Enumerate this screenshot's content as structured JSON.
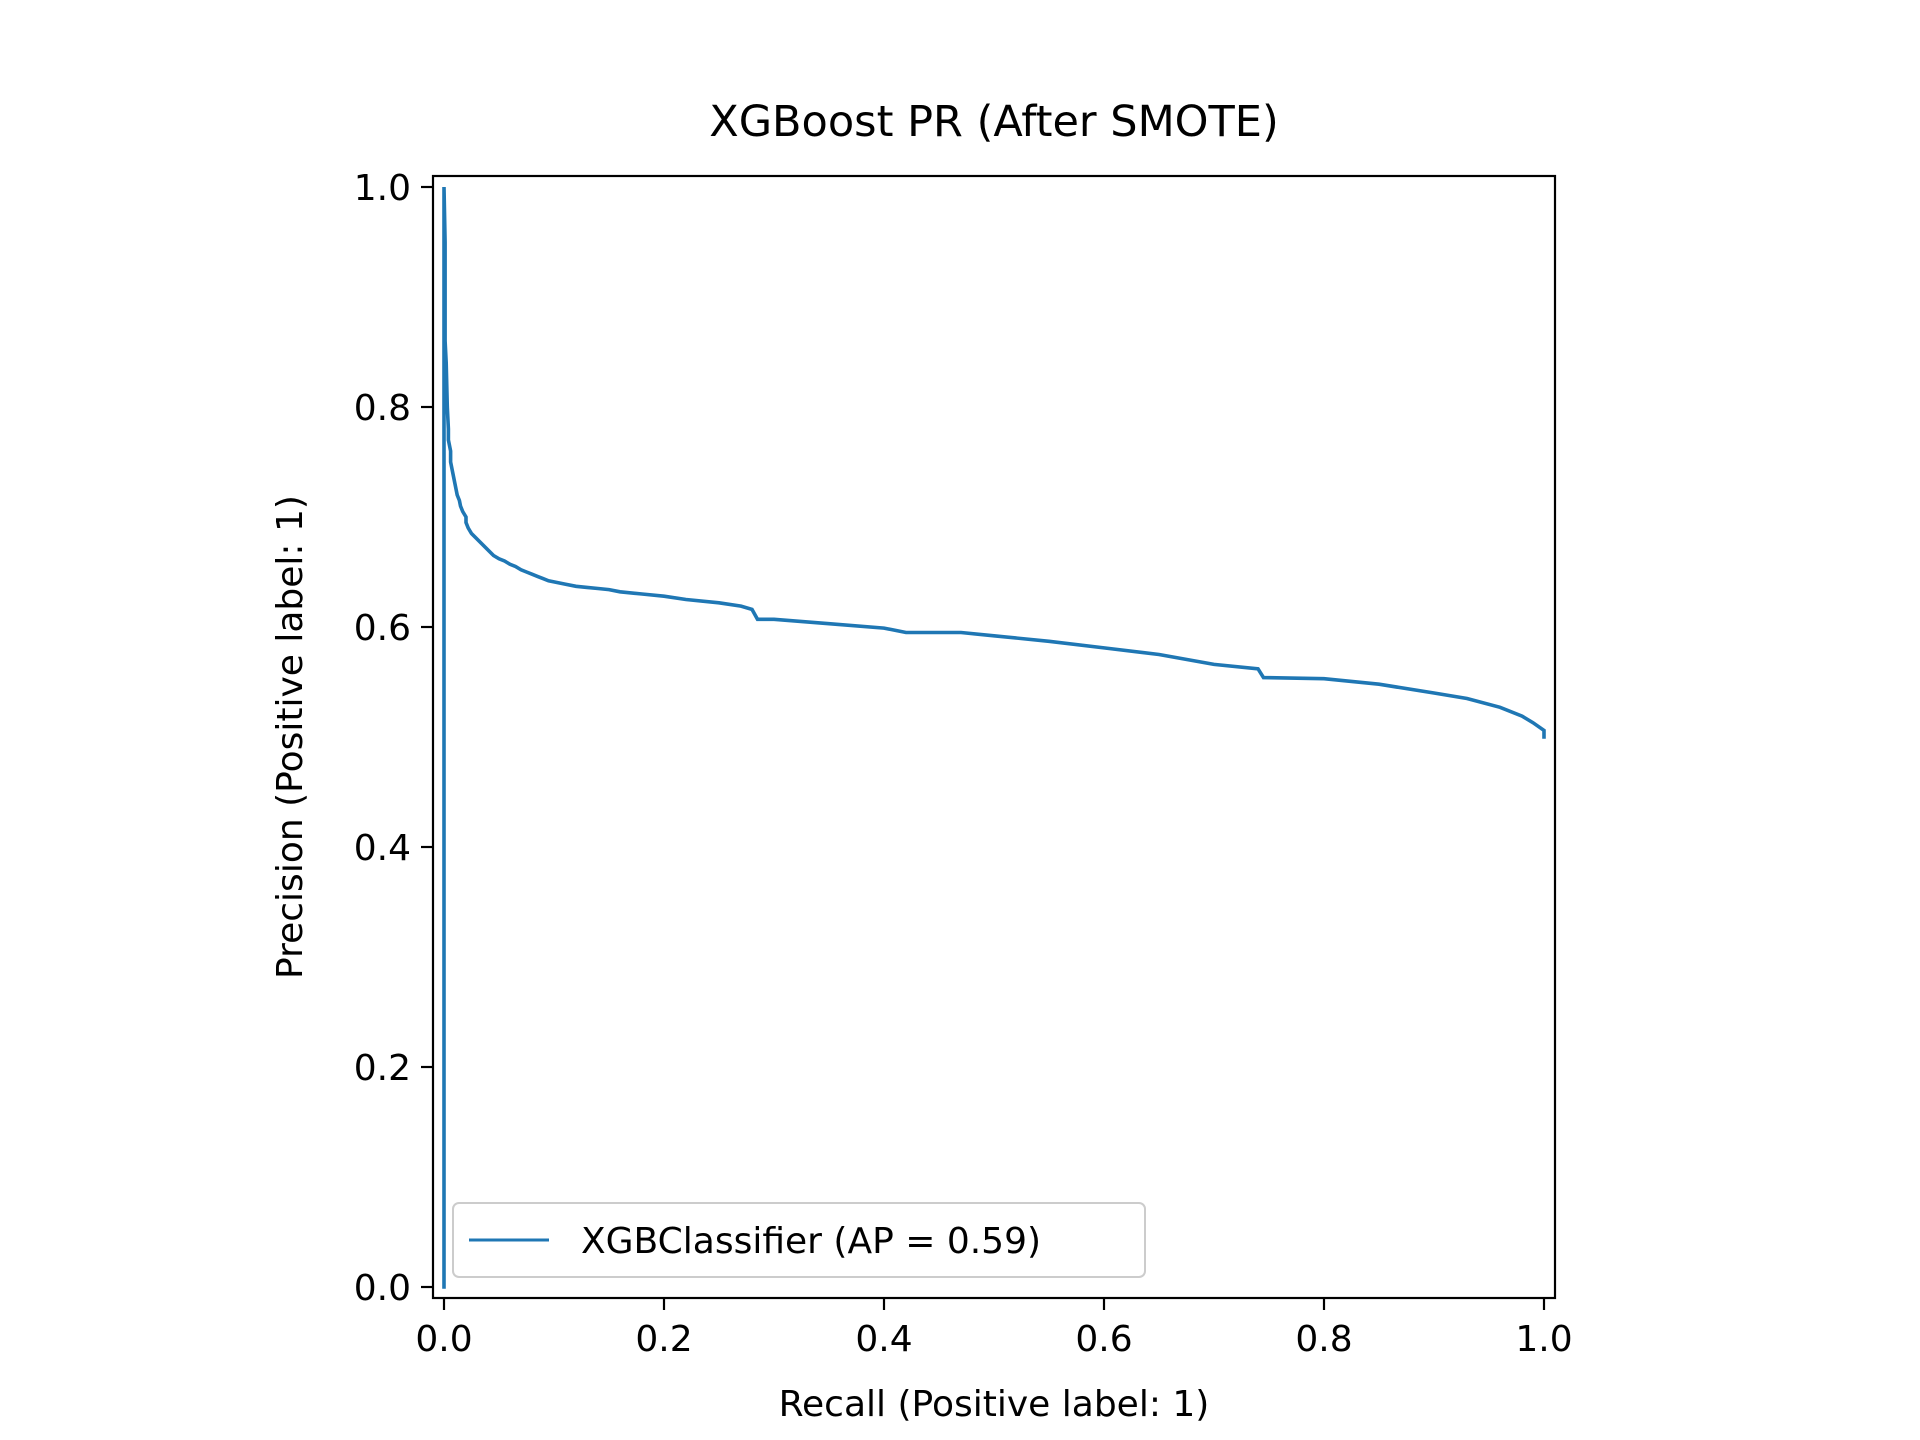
{
  "chart_data": {
    "type": "line",
    "title": "XGBoost PR (After SMOTE)",
    "xlabel": "Recall (Positive label: 1)",
    "ylabel": "Precision (Positive label: 1)",
    "xlim": [
      -0.01,
      1.01
    ],
    "ylim": [
      -0.01,
      1.01
    ],
    "grid": false,
    "legend_position": "lower left",
    "xticks": [
      0.0,
      0.2,
      0.4,
      0.6,
      0.8,
      1.0
    ],
    "xtick_labels": [
      "0.0",
      "0.2",
      "0.4",
      "0.6",
      "0.8",
      "1.0"
    ],
    "yticks": [
      0.0,
      0.2,
      0.4,
      0.6,
      0.8,
      1.0
    ],
    "ytick_labels": [
      "0.0",
      "0.2",
      "0.4",
      "0.6",
      "0.8",
      "1.0"
    ],
    "series": [
      {
        "name": "XGBClassifier (AP = 0.59)",
        "color": "#1f77b4",
        "x": [
          0.0,
          0.0,
          0.001,
          0.001,
          0.002,
          0.003,
          0.004,
          0.004,
          0.006,
          0.006,
          0.008,
          0.01,
          0.012,
          0.014,
          0.015,
          0.017,
          0.02,
          0.02,
          0.022,
          0.025,
          0.03,
          0.035,
          0.04,
          0.045,
          0.05,
          0.055,
          0.06,
          0.065,
          0.07,
          0.075,
          0.08,
          0.085,
          0.09,
          0.095,
          0.1,
          0.11,
          0.12,
          0.13,
          0.14,
          0.15,
          0.16,
          0.18,
          0.2,
          0.22,
          0.25,
          0.27,
          0.28,
          0.285,
          0.3,
          0.35,
          0.4,
          0.42,
          0.47,
          0.5,
          0.55,
          0.6,
          0.65,
          0.7,
          0.74,
          0.745,
          0.8,
          0.85,
          0.9,
          0.93,
          0.96,
          0.98,
          0.99,
          1.0,
          1.0
        ],
        "y": [
          0.0,
          1.0,
          0.95,
          0.86,
          0.84,
          0.8,
          0.78,
          0.77,
          0.76,
          0.75,
          0.74,
          0.73,
          0.72,
          0.715,
          0.71,
          0.705,
          0.7,
          0.695,
          0.69,
          0.685,
          0.68,
          0.675,
          0.67,
          0.665,
          0.662,
          0.66,
          0.657,
          0.655,
          0.652,
          0.65,
          0.648,
          0.646,
          0.644,
          0.642,
          0.641,
          0.639,
          0.637,
          0.636,
          0.635,
          0.634,
          0.632,
          0.63,
          0.628,
          0.625,
          0.622,
          0.619,
          0.616,
          0.607,
          0.607,
          0.603,
          0.599,
          0.595,
          0.595,
          0.592,
          0.587,
          0.581,
          0.575,
          0.566,
          0.562,
          0.554,
          0.553,
          0.548,
          0.54,
          0.535,
          0.527,
          0.519,
          0.513,
          0.506,
          0.5
        ],
        "line_width": 3
      }
    ]
  }
}
